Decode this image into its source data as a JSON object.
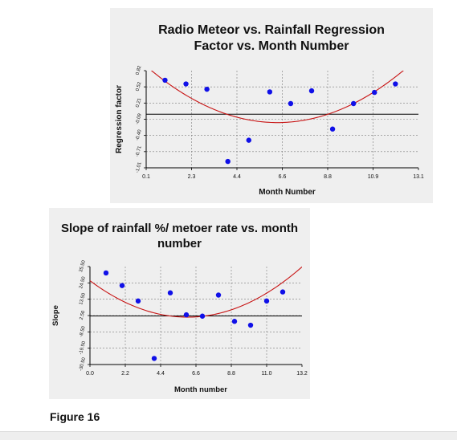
{
  "caption": "Figure 16",
  "chart_data": [
    {
      "type": "scatter",
      "title": "Radio Meteor vs. Rainfall Regression\nFactor vs. Month Number",
      "xlabel": "Month Number",
      "ylabel": "Regression factor",
      "xlim": [
        0.1,
        13.1
      ],
      "ylim": [
        -1.01,
        0.82
      ],
      "x_ticks": [
        "0.1",
        "2.3",
        "4.4",
        "6.6",
        "8.8",
        "10.9",
        "13.1"
      ],
      "y_ticks": [
        "0.82",
        "0.52",
        "0.21",
        "-0.09",
        "-0.40",
        "-0.71",
        "-1.01"
      ],
      "grid": true,
      "points": {
        "x": [
          1,
          2,
          3,
          4,
          5,
          6,
          7,
          8,
          9,
          10,
          11,
          12
        ],
        "y": [
          0.64,
          0.57,
          0.47,
          -0.89,
          -0.49,
          0.42,
          0.2,
          0.44,
          -0.28,
          0.2,
          0.41,
          0.57
        ]
      },
      "fit_curve": {
        "type": "quadratic",
        "a": 0.0271,
        "b": -0.345,
        "c": 0.94
      },
      "reference_line": {
        "y": 0.0
      },
      "colors": {
        "points": "#1010e8",
        "curve": "#c81414",
        "reference": "#000000"
      }
    },
    {
      "type": "scatter",
      "title": "Slope of rainfall %/ metoer rate vs. month\nnumber",
      "xlabel": "Month number",
      "ylabel": "Slope",
      "xlim": [
        0.0,
        13.2
      ],
      "ylim": [
        -30.5,
        35.5
      ],
      "x_ticks": [
        "0.0",
        "2.2",
        "4.4",
        "6.6",
        "8.8",
        "11.0",
        "13.2"
      ],
      "y_ticks": [
        "35.50",
        "24.50",
        "13.50",
        "2.50",
        "-8.50",
        "-19.50",
        "-30.50"
      ],
      "grid": true,
      "points": {
        "x": [
          1,
          2,
          3,
          4,
          5,
          6,
          7,
          8,
          9,
          10,
          11,
          12
        ],
        "y": [
          31.2,
          22.7,
          12.3,
          -26.4,
          17.8,
          3.0,
          2.1,
          16.3,
          -1.4,
          -4.0,
          12.3,
          18.4
        ]
      },
      "fit_curve": {
        "type": "quadratic",
        "a": 0.667,
        "b": -8.1,
        "c": 26.0
      },
      "reference_line": {
        "y": 2.2
      },
      "colors": {
        "points": "#1010e8",
        "curve": "#c81414",
        "reference": "#000000"
      }
    }
  ]
}
